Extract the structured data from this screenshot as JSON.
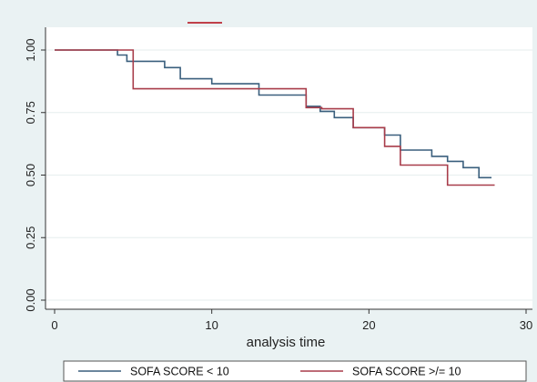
{
  "chart_data": {
    "type": "line",
    "subtype": "kaplan-meier-step",
    "xlabel": "analysis time",
    "ylabel": "",
    "xlim": [
      0,
      30
    ],
    "ylim": [
      0,
      1
    ],
    "x_ticks": [
      "0",
      "10",
      "20",
      "30"
    ],
    "y_ticks": [
      "0.00",
      "0.25",
      "0.50",
      "0.75",
      "1.00"
    ],
    "grid": "horizontal",
    "legend_position": "bottom",
    "series": [
      {
        "name": "SOFA SCORE < 10",
        "color": "#3a5f7d",
        "x": [
          0,
          4,
          4.6,
          7,
          8,
          10,
          13,
          16,
          16.9,
          17.8,
          19,
          21,
          22,
          24,
          25,
          26,
          27,
          27.8
        ],
        "y": [
          1.0,
          0.98,
          0.955,
          0.93,
          0.885,
          0.865,
          0.82,
          0.775,
          0.755,
          0.73,
          0.69,
          0.66,
          0.6,
          0.575,
          0.555,
          0.53,
          0.49,
          0.49
        ]
      },
      {
        "name": "SOFA SCORE >/= 10",
        "color": "#a83c4a",
        "x": [
          0,
          5,
          16,
          17,
          19,
          21,
          22,
          25,
          28
        ],
        "y": [
          1.0,
          0.845,
          0.77,
          0.765,
          0.69,
          0.615,
          0.54,
          0.46,
          0.46
        ]
      }
    ],
    "legend_marker_color": "#c0404a"
  }
}
